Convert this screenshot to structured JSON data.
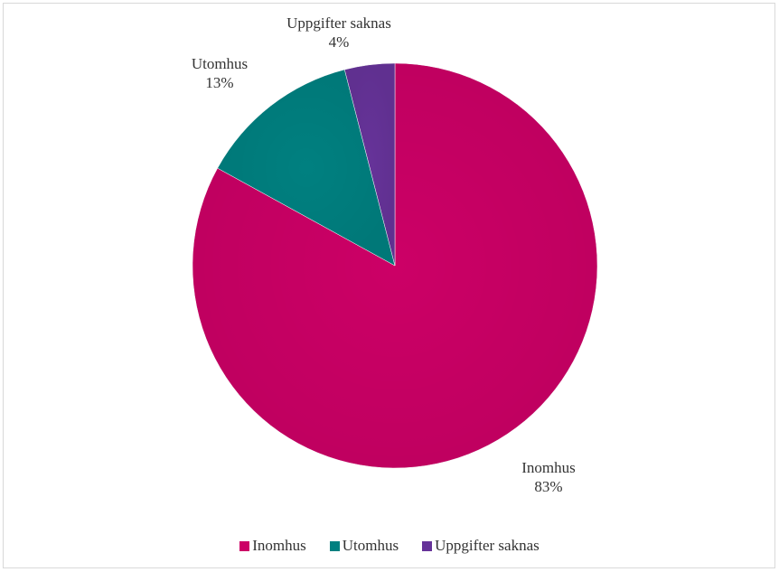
{
  "chart_data": {
    "type": "pie",
    "categories": [
      "Inomhus",
      "Utomhus",
      "Uppgifter saknas"
    ],
    "values": [
      83,
      13,
      4
    ],
    "value_labels": [
      "83%",
      "13%",
      "4%"
    ],
    "colors": [
      "#cc0066",
      "#008080",
      "#663399"
    ],
    "start_angle_deg": 0,
    "direction": "clockwise",
    "legend_position": "bottom"
  }
}
